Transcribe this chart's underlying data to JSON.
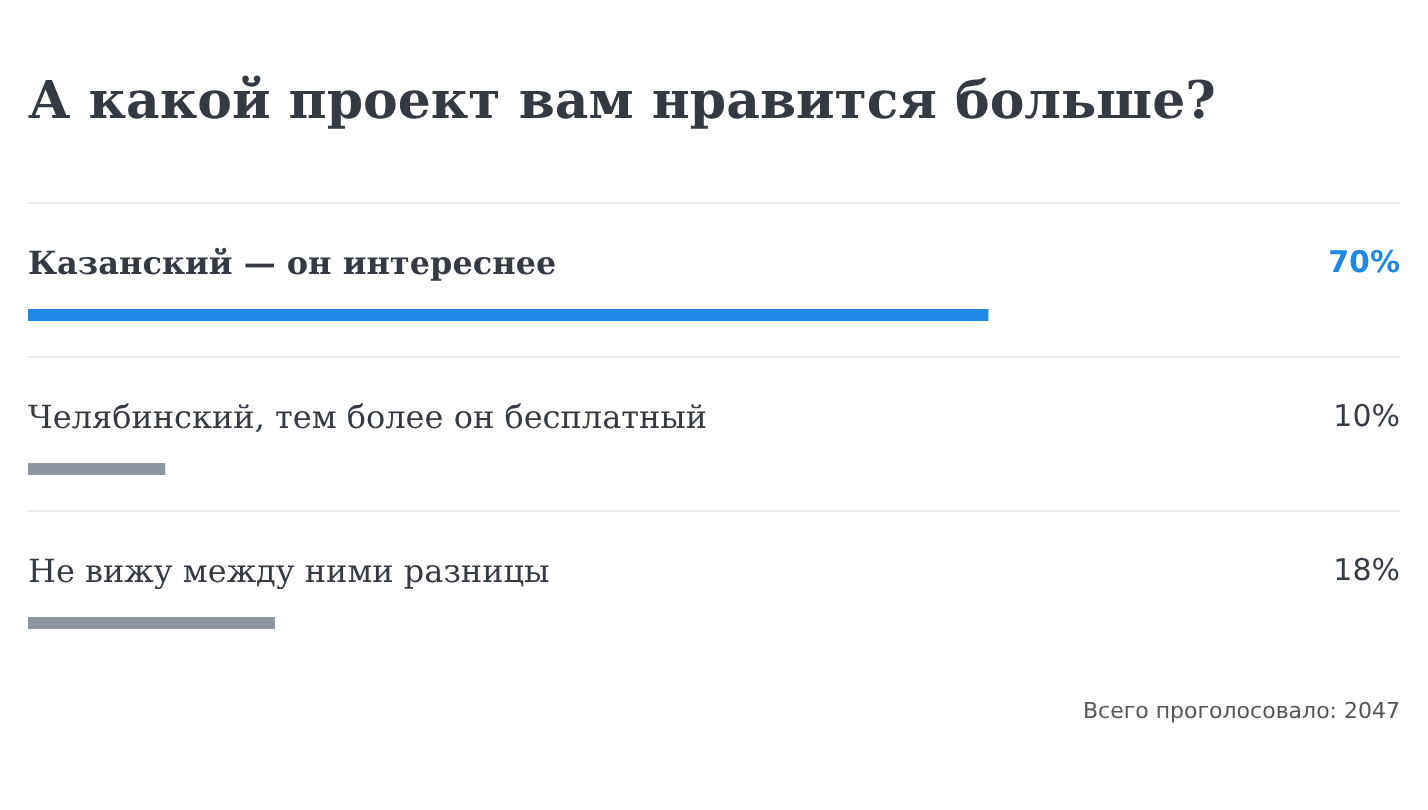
{
  "chart_data": {
    "type": "bar",
    "orientation": "horizontal",
    "title": "А какой проект вам нравится больше?",
    "categories": [
      "Казанский — он интереснее",
      "Челябинский, тем более он бесплатный",
      "Не вижу между ними разницы"
    ],
    "values": [
      70,
      10,
      18
    ],
    "colors": [
      "#1e88e5",
      "#8f959e",
      "#8f959e"
    ],
    "value_labels": [
      "70%",
      "10%",
      "18%"
    ],
    "xlim": [
      0,
      100
    ],
    "tick_labels": "y",
    "grid": "y",
    "annotations": [
      "Всего проголосовало: 2047"
    ]
  }
}
